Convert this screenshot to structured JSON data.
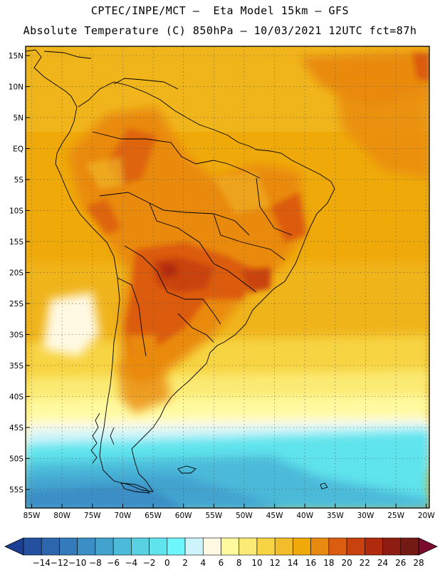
{
  "header": {
    "line1": "CPTEC/INPE/MCT –  Eta Model 15km – GFS",
    "line2": "Absolute Temperature (C) 850hPa – 10/03/2021 12UTC fct=87h"
  },
  "map": {
    "lon_range": [
      -86,
      -19.5
    ],
    "lat_range": [
      -58,
      16.5
    ],
    "lon_ticks": [
      {
        "value": -85,
        "label": "85W"
      },
      {
        "value": -80,
        "label": "80W"
      },
      {
        "value": -75,
        "label": "75W"
      },
      {
        "value": -70,
        "label": "70W"
      },
      {
        "value": -65,
        "label": "65W"
      },
      {
        "value": -60,
        "label": "60W"
      },
      {
        "value": -55,
        "label": "55W"
      },
      {
        "value": -50,
        "label": "50W"
      },
      {
        "value": -45,
        "label": "45W"
      },
      {
        "value": -40,
        "label": "40W"
      },
      {
        "value": -35,
        "label": "35W"
      },
      {
        "value": -30,
        "label": "30W"
      },
      {
        "value": -25,
        "label": "25W"
      },
      {
        "value": -20,
        "label": "20W"
      }
    ],
    "lat_ticks": [
      {
        "value": 15,
        "label": "15N"
      },
      {
        "value": 10,
        "label": "10N"
      },
      {
        "value": 5,
        "label": "5N"
      },
      {
        "value": 0,
        "label": "EQ"
      },
      {
        "value": -5,
        "label": "5S"
      },
      {
        "value": -10,
        "label": "10S"
      },
      {
        "value": -15,
        "label": "15S"
      },
      {
        "value": -20,
        "label": "20S"
      },
      {
        "value": -25,
        "label": "25S"
      },
      {
        "value": -30,
        "label": "30S"
      },
      {
        "value": -35,
        "label": "35S"
      },
      {
        "value": -40,
        "label": "40S"
      },
      {
        "value": -45,
        "label": "45S"
      },
      {
        "value": -50,
        "label": "50S"
      },
      {
        "value": -55,
        "label": "55S"
      }
    ]
  },
  "colorbar": {
    "labels": [
      "-14",
      "-12",
      "-10",
      "-8",
      "-6",
      "-4",
      "-2",
      "0",
      "2",
      "4",
      "6",
      "8",
      "10",
      "12",
      "14",
      "16",
      "18",
      "20",
      "22",
      "24",
      "26",
      "28"
    ],
    "colors": [
      "#1c3f94",
      "#23509f",
      "#2d66ad",
      "#337bbb",
      "#3b8fc6",
      "#42a3cf",
      "#4cbad9",
      "#5ad0e3",
      "#5fe3ec",
      "#6df6fb",
      "#cdf4fb",
      "#fff9e3",
      "#fffaa0",
      "#fbea73",
      "#f7d443",
      "#f2bd2b",
      "#efaa0a",
      "#e98a10",
      "#dc5c10",
      "#c84210",
      "#b02a0e",
      "#8f1c10",
      "#731a15",
      "#7a0b2c"
    ]
  }
}
